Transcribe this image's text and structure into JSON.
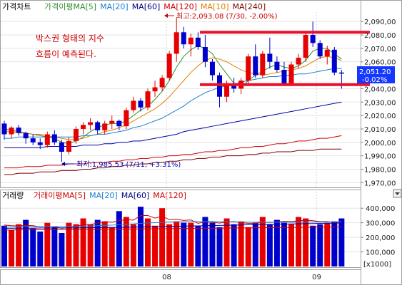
{
  "colors": {
    "up": "#e60000",
    "down": "#0000cc",
    "ma5": "#2f8f2f",
    "ma20": "#1a7fd1",
    "ma60": "#0000aa",
    "ma120": "#cc0000",
    "ma10": "#e08000",
    "ma240": "#800000",
    "box_line": "#e8102a",
    "price_label_bg": "#1438ff"
  },
  "price_panel": {
    "title": "가격차트",
    "legend": [
      {
        "label": "가격이평MA[5]",
        "color": "#2f8f2f"
      },
      {
        "label": "MA[20]",
        "color": "#1a7fd1"
      },
      {
        "label": "MA[60]",
        "color": "#000080"
      },
      {
        "label": "MA[120]",
        "color": "#cc0000"
      },
      {
        "label": "MA[10]",
        "color": "#e08000"
      },
      {
        "label": "MA[240]",
        "color": "#800000"
      }
    ],
    "y_ticks": [
      "2,090,00",
      "2,080,00",
      "2,070,00",
      "2,060,00",
      "2,040,00",
      "2,030,00",
      "2,020,00",
      "2,010,00",
      "2,000,00",
      "1,990,00",
      "1,980,00",
      "1,970,00"
    ],
    "high_annotation": "최고:2,093.08 (7/30, -2.00%)",
    "low_annotation": "최저:1,985.53 (7/11, +3.31%)",
    "note_line1": "박스권 형태의 지수",
    "note_line2": "흐름이 예측된다.",
    "current_price": "2,051.20",
    "current_change": "-0.02%"
  },
  "volume_panel": {
    "title": "거래량",
    "legend": [
      {
        "label": "거래이평MA[5]",
        "color": "#cc0000"
      },
      {
        "label": "MA[20]",
        "color": "#1a7fd1"
      },
      {
        "label": "MA[60]",
        "color": "#000080"
      },
      {
        "label": "MA[120]",
        "color": "#cc0000"
      }
    ],
    "y_ticks": [
      "400,000",
      "300,000",
      "200,000",
      "100,000"
    ],
    "unit_label": "[x1000]",
    "x_ticks": [
      "08",
      "09"
    ]
  },
  "chart_data": [
    {
      "type": "candlestick",
      "title": "가격차트",
      "ylim": [
        1967,
        2097
      ],
      "series": [
        {
          "name": "price",
          "ohlc": [
            [
              2014,
              2016,
              2002,
              2006
            ],
            [
              2006,
              2012,
              2003,
              2011
            ],
            [
              2011,
              2013,
              2005,
              2007
            ],
            [
              2007,
              2008,
              1999,
              2003
            ],
            [
              2003,
              2006,
              1998,
              2000
            ],
            [
              2000,
              2003,
              1995,
              1998
            ],
            [
              1998,
              2008,
              1996,
              2006
            ],
            [
              2006,
              2009,
              1998,
              2000
            ],
            [
              2000,
              2002,
              1985.53,
              1993
            ],
            [
              1993,
              2004,
              1991,
              2001
            ],
            [
              2001,
              2012,
              1999,
              2010
            ],
            [
              2010,
              2015,
              2006,
              2013
            ],
            [
              2013,
              2018,
              2009,
              2015
            ],
            [
              2015,
              2016,
              2006,
              2009
            ],
            [
              2009,
              2016,
              2006,
              2014
            ],
            [
              2014,
              2020,
              2010,
              2016
            ],
            [
              2016,
              2017,
              2009,
              2012
            ],
            [
              2012,
              2026,
              2010,
              2024
            ],
            [
              2024,
              2034,
              2022,
              2031
            ],
            [
              2031,
              2033,
              2023,
              2026
            ],
            [
              2026,
              2040,
              2024,
              2038
            ],
            [
              2038,
              2046,
              2034,
              2041
            ],
            [
              2041,
              2050,
              2038,
              2048
            ],
            [
              2048,
              2068,
              2046,
              2066
            ],
            [
              2066,
              2093.08,
              2060,
              2082
            ],
            [
              2082,
              2086,
              2070,
              2073
            ],
            [
              2073,
              2081,
              2064,
              2078
            ],
            [
              2078,
              2082,
              2069,
              2071
            ],
            [
              2071,
              2080,
              2056,
              2060
            ],
            [
              2060,
              2062,
              2046,
              2050
            ],
            [
              2050,
              2052,
              2026,
              2034
            ],
            [
              2034,
              2046,
              2030,
              2044
            ],
            [
              2044,
              2048,
              2037,
              2040
            ],
            [
              2040,
              2048,
              2036,
              2046
            ],
            [
              2046,
              2066,
              2044,
              2064
            ],
            [
              2064,
              2073,
              2048,
              2050
            ],
            [
              2050,
              2068,
              2048,
              2066
            ],
            [
              2066,
              2078,
              2055,
              2060
            ],
            [
              2060,
              2064,
              2052,
              2054
            ],
            [
              2054,
              2060,
              2042,
              2044
            ],
            [
              2044,
              2060,
              2042,
              2058
            ],
            [
              2058,
              2066,
              2055,
              2063
            ],
            [
              2063,
              2082,
              2060,
              2080
            ],
            [
              2080,
              2090,
              2071,
              2074
            ],
            [
              2074,
              2076,
              2062,
              2064
            ],
            [
              2064,
              2072,
              2058,
              2069
            ],
            [
              2069,
              2071,
              2050,
              2052
            ],
            [
              2052,
              2054,
              2040,
              2051.2
            ]
          ]
        },
        {
          "name": "MA[5]",
          "values": [
            2010,
            2009,
            2008,
            2007,
            2006,
            2005,
            2004,
            2003,
            2000,
            1999,
            2001,
            2004,
            2008,
            2011,
            2013,
            2014,
            2014,
            2016,
            2020,
            2024,
            2027,
            2032,
            2038,
            2046,
            2056,
            2064,
            2069,
            2072,
            2070,
            2066,
            2058,
            2051,
            2044,
            2041,
            2046,
            2050,
            2053,
            2056,
            2058,
            2056,
            2055,
            2057,
            2061,
            2068,
            2070,
            2070,
            2066,
            2062
          ]
        },
        {
          "name": "MA[10]",
          "values": [
            2008,
            2008,
            2007,
            2007,
            2006,
            2006,
            2005,
            2004,
            2003,
            2002,
            2002,
            2003,
            2005,
            2006,
            2008,
            2009,
            2011,
            2013,
            2016,
            2019,
            2022,
            2025,
            2029,
            2034,
            2040,
            2046,
            2052,
            2057,
            2061,
            2063,
            2062,
            2060,
            2057,
            2054,
            2052,
            2051,
            2050,
            2051,
            2052,
            2053,
            2054,
            2055,
            2057,
            2060,
            2063,
            2064,
            2063,
            2061
          ]
        },
        {
          "name": "MA[20]",
          "values": [
            2003,
            2003,
            2004,
            2004,
            2004,
            2004,
            2004,
            2004,
            2004,
            2004,
            2004,
            2005,
            2005,
            2006,
            2006,
            2007,
            2008,
            2009,
            2011,
            2012,
            2014,
            2016,
            2018,
            2021,
            2024,
            2027,
            2031,
            2034,
            2037,
            2039,
            2041,
            2042,
            2043,
            2045,
            2046,
            2047,
            2048,
            2049,
            2049,
            2050,
            2050,
            2051,
            2051,
            2052,
            2053,
            2054,
            2055,
            2055
          ]
        },
        {
          "name": "MA[60]",
          "values": [
            1996,
            1996,
            1996,
            1996,
            1996,
            1996,
            1997,
            1997,
            1997,
            1997,
            1997,
            1998,
            1998,
            1998,
            1999,
            1999,
            2000,
            2000,
            2001,
            2001,
            2002,
            2003,
            2004,
            2005,
            2006,
            2008,
            2009,
            2010,
            2011,
            2012,
            2013,
            2014,
            2015,
            2016,
            2017,
            2018,
            2019,
            2020,
            2021,
            2022,
            2023,
            2024,
            2025,
            2026,
            2027,
            2028,
            2029,
            2030
          ]
        },
        {
          "name": "MA[120]",
          "values": [
            1981,
            1981,
            1981,
            1982,
            1982,
            1982,
            1983,
            1983,
            1983,
            1984,
            1984,
            1984,
            1985,
            1985,
            1985,
            1986,
            1986,
            1987,
            1987,
            1988,
            1988,
            1989,
            1989,
            1990,
            1990,
            1991,
            1991,
            1992,
            1993,
            1993,
            1994,
            1994,
            1995,
            1996,
            1996,
            1997,
            1997,
            1998,
            1999,
            1999,
            2000,
            2001,
            2001,
            2002,
            2003,
            2003,
            2004,
            2005
          ]
        },
        {
          "name": "MA[240]",
          "values": [
            1976,
            1976,
            1977,
            1977,
            1977,
            1978,
            1978,
            1978,
            1979,
            1979,
            1979,
            1980,
            1980,
            1981,
            1981,
            1982,
            1982,
            1983,
            1983,
            1984,
            1984,
            1985,
            1985,
            1986,
            1986,
            1987,
            1987,
            1988,
            1988,
            1989,
            1989,
            1990,
            1990,
            1990,
            1991,
            1991,
            1992,
            1992,
            1993,
            1993,
            1993,
            1994,
            1994,
            1994,
            1995,
            1995,
            1995,
            1995
          ]
        }
      ],
      "box_lines": [
        2082,
        2043
      ],
      "y_ticks": [
        2090,
        2080,
        2070,
        2060,
        2040,
        2030,
        2020,
        2010,
        2000,
        1990,
        1980,
        1970
      ]
    },
    {
      "type": "bar",
      "title": "거래량",
      "ylim": [
        0,
        450000
      ],
      "y_ticks": [
        400000,
        300000,
        200000,
        100000
      ],
      "values": [
        280000,
        250000,
        290000,
        320000,
        260000,
        240000,
        300000,
        270000,
        230000,
        300000,
        290000,
        330000,
        290000,
        320000,
        310000,
        270000,
        380000,
        340000,
        290000,
        410000,
        330000,
        280000,
        400000,
        290000,
        310000,
        300000,
        300000,
        280000,
        340000,
        300000,
        270000,
        330000,
        290000,
        310000,
        270000,
        300000,
        340000,
        290000,
        320000,
        300000,
        290000,
        340000,
        330000,
        280000,
        290000,
        300000,
        310000,
        330000
      ],
      "directions": [
        "down",
        "up",
        "up",
        "down",
        "down",
        "down",
        "up",
        "down",
        "down",
        "up",
        "up",
        "up",
        "up",
        "down",
        "up",
        "up",
        "down",
        "up",
        "up",
        "down",
        "up",
        "up",
        "up",
        "up",
        "up",
        "down",
        "up",
        "down",
        "down",
        "down",
        "down",
        "up",
        "down",
        "up",
        "up",
        "down",
        "up",
        "down",
        "down",
        "down",
        "up",
        "up",
        "up",
        "down",
        "down",
        "up",
        "down",
        "down"
      ],
      "series": [
        {
          "name": "MA[5]",
          "values": [
            285000,
            280000,
            278000,
            282000,
            280000,
            272000,
            276000,
            272000,
            262000,
            268000,
            278000,
            286000,
            288000,
            298000,
            308000,
            304000,
            314000,
            322000,
            318000,
            350000,
            350000,
            332000,
            344000,
            322000,
            324000,
            316000,
            320000,
            296000,
            306000,
            304000,
            298000,
            306000,
            308000,
            300000,
            296000,
            296000,
            304000,
            302000,
            306000,
            310000,
            308000,
            314000,
            318000,
            314000,
            308000,
            308000,
            302000,
            306000
          ]
        },
        {
          "name": "MA[20]",
          "values": [
            270000,
            271000,
            272000,
            273000,
            273000,
            273000,
            274000,
            274000,
            274000,
            275000,
            276000,
            277000,
            278000,
            280000,
            282000,
            284000,
            287000,
            290000,
            292000,
            296000,
            299000,
            301000,
            303000,
            305000,
            306000,
            307000,
            308000,
            308000,
            308000,
            308000,
            307000,
            307000,
            306000,
            305000,
            304000,
            304000,
            304000,
            304000,
            304000,
            304000,
            304000,
            305000,
            305000,
            305000,
            305000,
            306000,
            306000,
            306000
          ]
        },
        {
          "name": "MA[60]",
          "values": [
            262000,
            262000,
            263000,
            263000,
            263000,
            264000,
            264000,
            264000,
            265000,
            265000,
            265000,
            266000,
            266000,
            267000,
            267000,
            268000,
            268000,
            269000,
            270000,
            271000,
            272000,
            273000,
            274000,
            275000,
            276000,
            277000,
            278000,
            279000,
            280000,
            281000,
            282000,
            283000,
            284000,
            285000,
            286000,
            287000,
            288000,
            289000,
            290000,
            291000,
            292000,
            293000,
            294000,
            295000,
            296000,
            297000,
            298000,
            299000
          ]
        },
        {
          "name": "MA[120]",
          "values": [
            250000,
            250000,
            251000,
            251000,
            251000,
            252000,
            252000,
            252000,
            253000,
            253000,
            254000,
            254000,
            254000,
            255000,
            255000,
            256000,
            256000,
            257000,
            257000,
            258000,
            258000,
            259000,
            259000,
            260000,
            260000,
            261000,
            261000,
            262000,
            262000,
            263000,
            263000,
            264000,
            264000,
            265000,
            265000,
            266000,
            266000,
            267000,
            267000,
            268000,
            268000,
            269000,
            269000,
            270000,
            270000,
            271000,
            271000,
            272000
          ]
        }
      ]
    }
  ]
}
